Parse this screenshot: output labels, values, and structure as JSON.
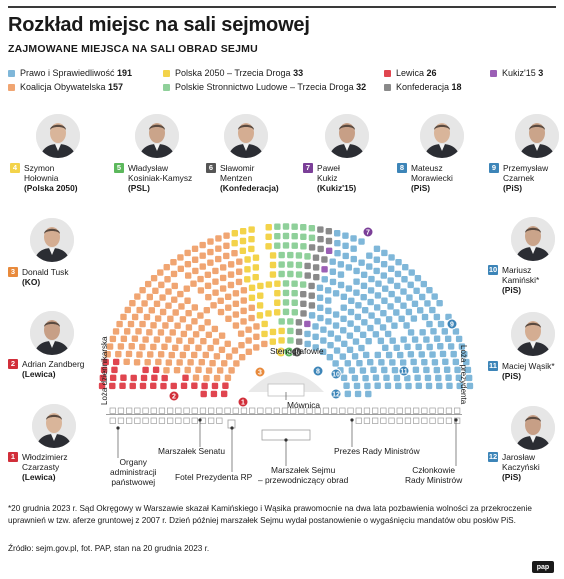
{
  "title": "Rozkład miejsc na sali sejmowej",
  "subtitle": "ZAJMOWANE MIEJSCA NA SALI OBRAD SEJMU",
  "legend": [
    {
      "label": "Prawo i Sprawiedliwość",
      "count": "191",
      "color": "#7fb7d9"
    },
    {
      "label": "Koalicja Obywatelska",
      "count": "157",
      "color": "#f0a572"
    },
    {
      "label": "Polska 2050 – Trzecia Droga",
      "count": "33",
      "color": "#f3d34a"
    },
    {
      "label": "Polskie Stronnictwo Ludowe – Trzecia Droga",
      "count": "32",
      "color": "#8fd09a"
    },
    {
      "label": "Lewica",
      "count": "26",
      "color": "#e0454f"
    },
    {
      "label": "Konfederacja",
      "count": "18",
      "color": "#8a8a8a"
    },
    {
      "label": "Kukiz'15",
      "count": "3",
      "color": "#9b5fb5"
    }
  ],
  "politicians": [
    {
      "num": "4",
      "name1": "Szymon",
      "name2": "Hołownia",
      "party": "(Polska 2050)",
      "color": "#f3d34a"
    },
    {
      "num": "5",
      "name1": "Władysław",
      "name2": "Kosiniak-Kamysz",
      "party": "(PSL)",
      "color": "#5cb85c"
    },
    {
      "num": "6",
      "name1": "Sławomir",
      "name2": "Mentzen",
      "party": "(Konfederacja)",
      "color": "#555555"
    },
    {
      "num": "7",
      "name1": "Paweł",
      "name2": "Kukiz",
      "party": "(Kukiz'15)",
      "color": "#7b3f98"
    },
    {
      "num": "8",
      "name1": "Mateusz",
      "name2": "Morawiecki",
      "party": "(PiS)",
      "color": "#3d85b8"
    },
    {
      "num": "9",
      "name1": "Przemysław",
      "name2": "Czarnek",
      "party": "(PiS)",
      "color": "#3d85b8"
    },
    {
      "num": "3",
      "name1": "Donald Tusk",
      "name2": "",
      "party": "(KO)",
      "color": "#e88a3c"
    },
    {
      "num": "2",
      "name1": "Adrian Zandberg",
      "name2": "",
      "party": "(Lewica)",
      "color": "#d12f3a"
    },
    {
      "num": "1",
      "name1": "Włodzimierz",
      "name2": "Czarzasty",
      "party": "(Lewica)",
      "color": "#d12f3a"
    },
    {
      "num": "10",
      "name1": "Mariusz",
      "name2": "Kamiński*",
      "party": "(PiS)",
      "color": "#3d85b8"
    },
    {
      "num": "11",
      "name1": "Maciej Wąsik*",
      "name2": "",
      "party": "(PiS)",
      "color": "#3d85b8"
    },
    {
      "num": "12",
      "name1": "Jarosław",
      "name2": "Kaczyński",
      "party": "(PiS)",
      "color": "#3d85b8"
    }
  ],
  "hall_labels": {
    "stenografowie": "Stenografowie",
    "mownica": "Mównica",
    "loza_dziennikarska": "Loża dziennikarska",
    "loza_prezydenta": "Loża prezydenta",
    "organy": [
      "Organy",
      "administracji",
      "państwowej"
    ],
    "marszalek_senatu": "Marszałek Senatu",
    "fotel_prezydenta": "Fotel Prezydenta RP",
    "marszalek_sejmu": [
      "Marszałek Sejmu",
      "– przewodniczący obrad"
    ],
    "prezes_rady": "Prezes Rady Ministrów",
    "czlonkowie": [
      "Członkowie",
      "Rady Ministrów"
    ]
  },
  "footnote": "*20 grudnia 2023 r. Sąd Okręgowy w Warszawie skazał Kamińskiego i Wąsika prawomocnie na dwa lata pozbawienia wolności za przekroczenie uprawnień w tzw. aferze gruntowej z 2007 r. Dzień później marszałek Sejmu wydał postanowienie o wygaśnięciu mandatów obu posłów PiS.",
  "source": "Źródło: sejm.gov.pl, fot. PAP, stan na 20 grudnia 2023 r.",
  "logo": "pap"
}
